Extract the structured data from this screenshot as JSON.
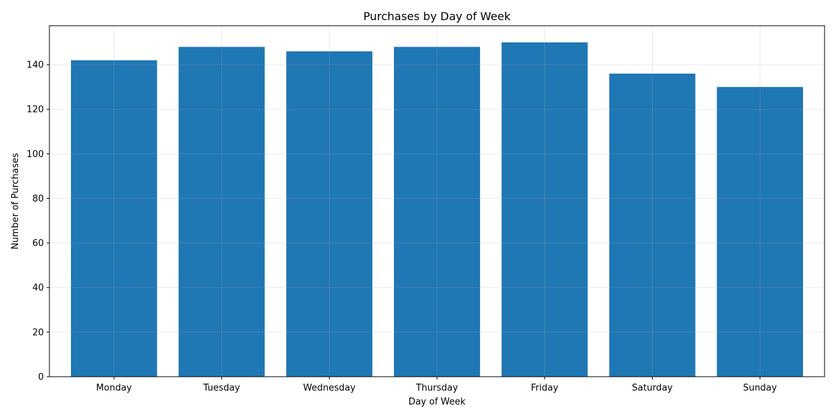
{
  "chart_data": {
    "type": "bar",
    "title": "Purchases by Day of Week",
    "xlabel": "Day of Week",
    "ylabel": "Number of Purchases",
    "categories": [
      "Monday",
      "Tuesday",
      "Wednesday",
      "Thursday",
      "Friday",
      "Saturday",
      "Sunday"
    ],
    "values": [
      142,
      148,
      146,
      148,
      150,
      136,
      130
    ],
    "ylim": [
      0,
      157.5
    ],
    "yticks": [
      0,
      20,
      40,
      60,
      80,
      100,
      120,
      140
    ],
    "grid": true,
    "bar_color": "#1f77b4"
  }
}
